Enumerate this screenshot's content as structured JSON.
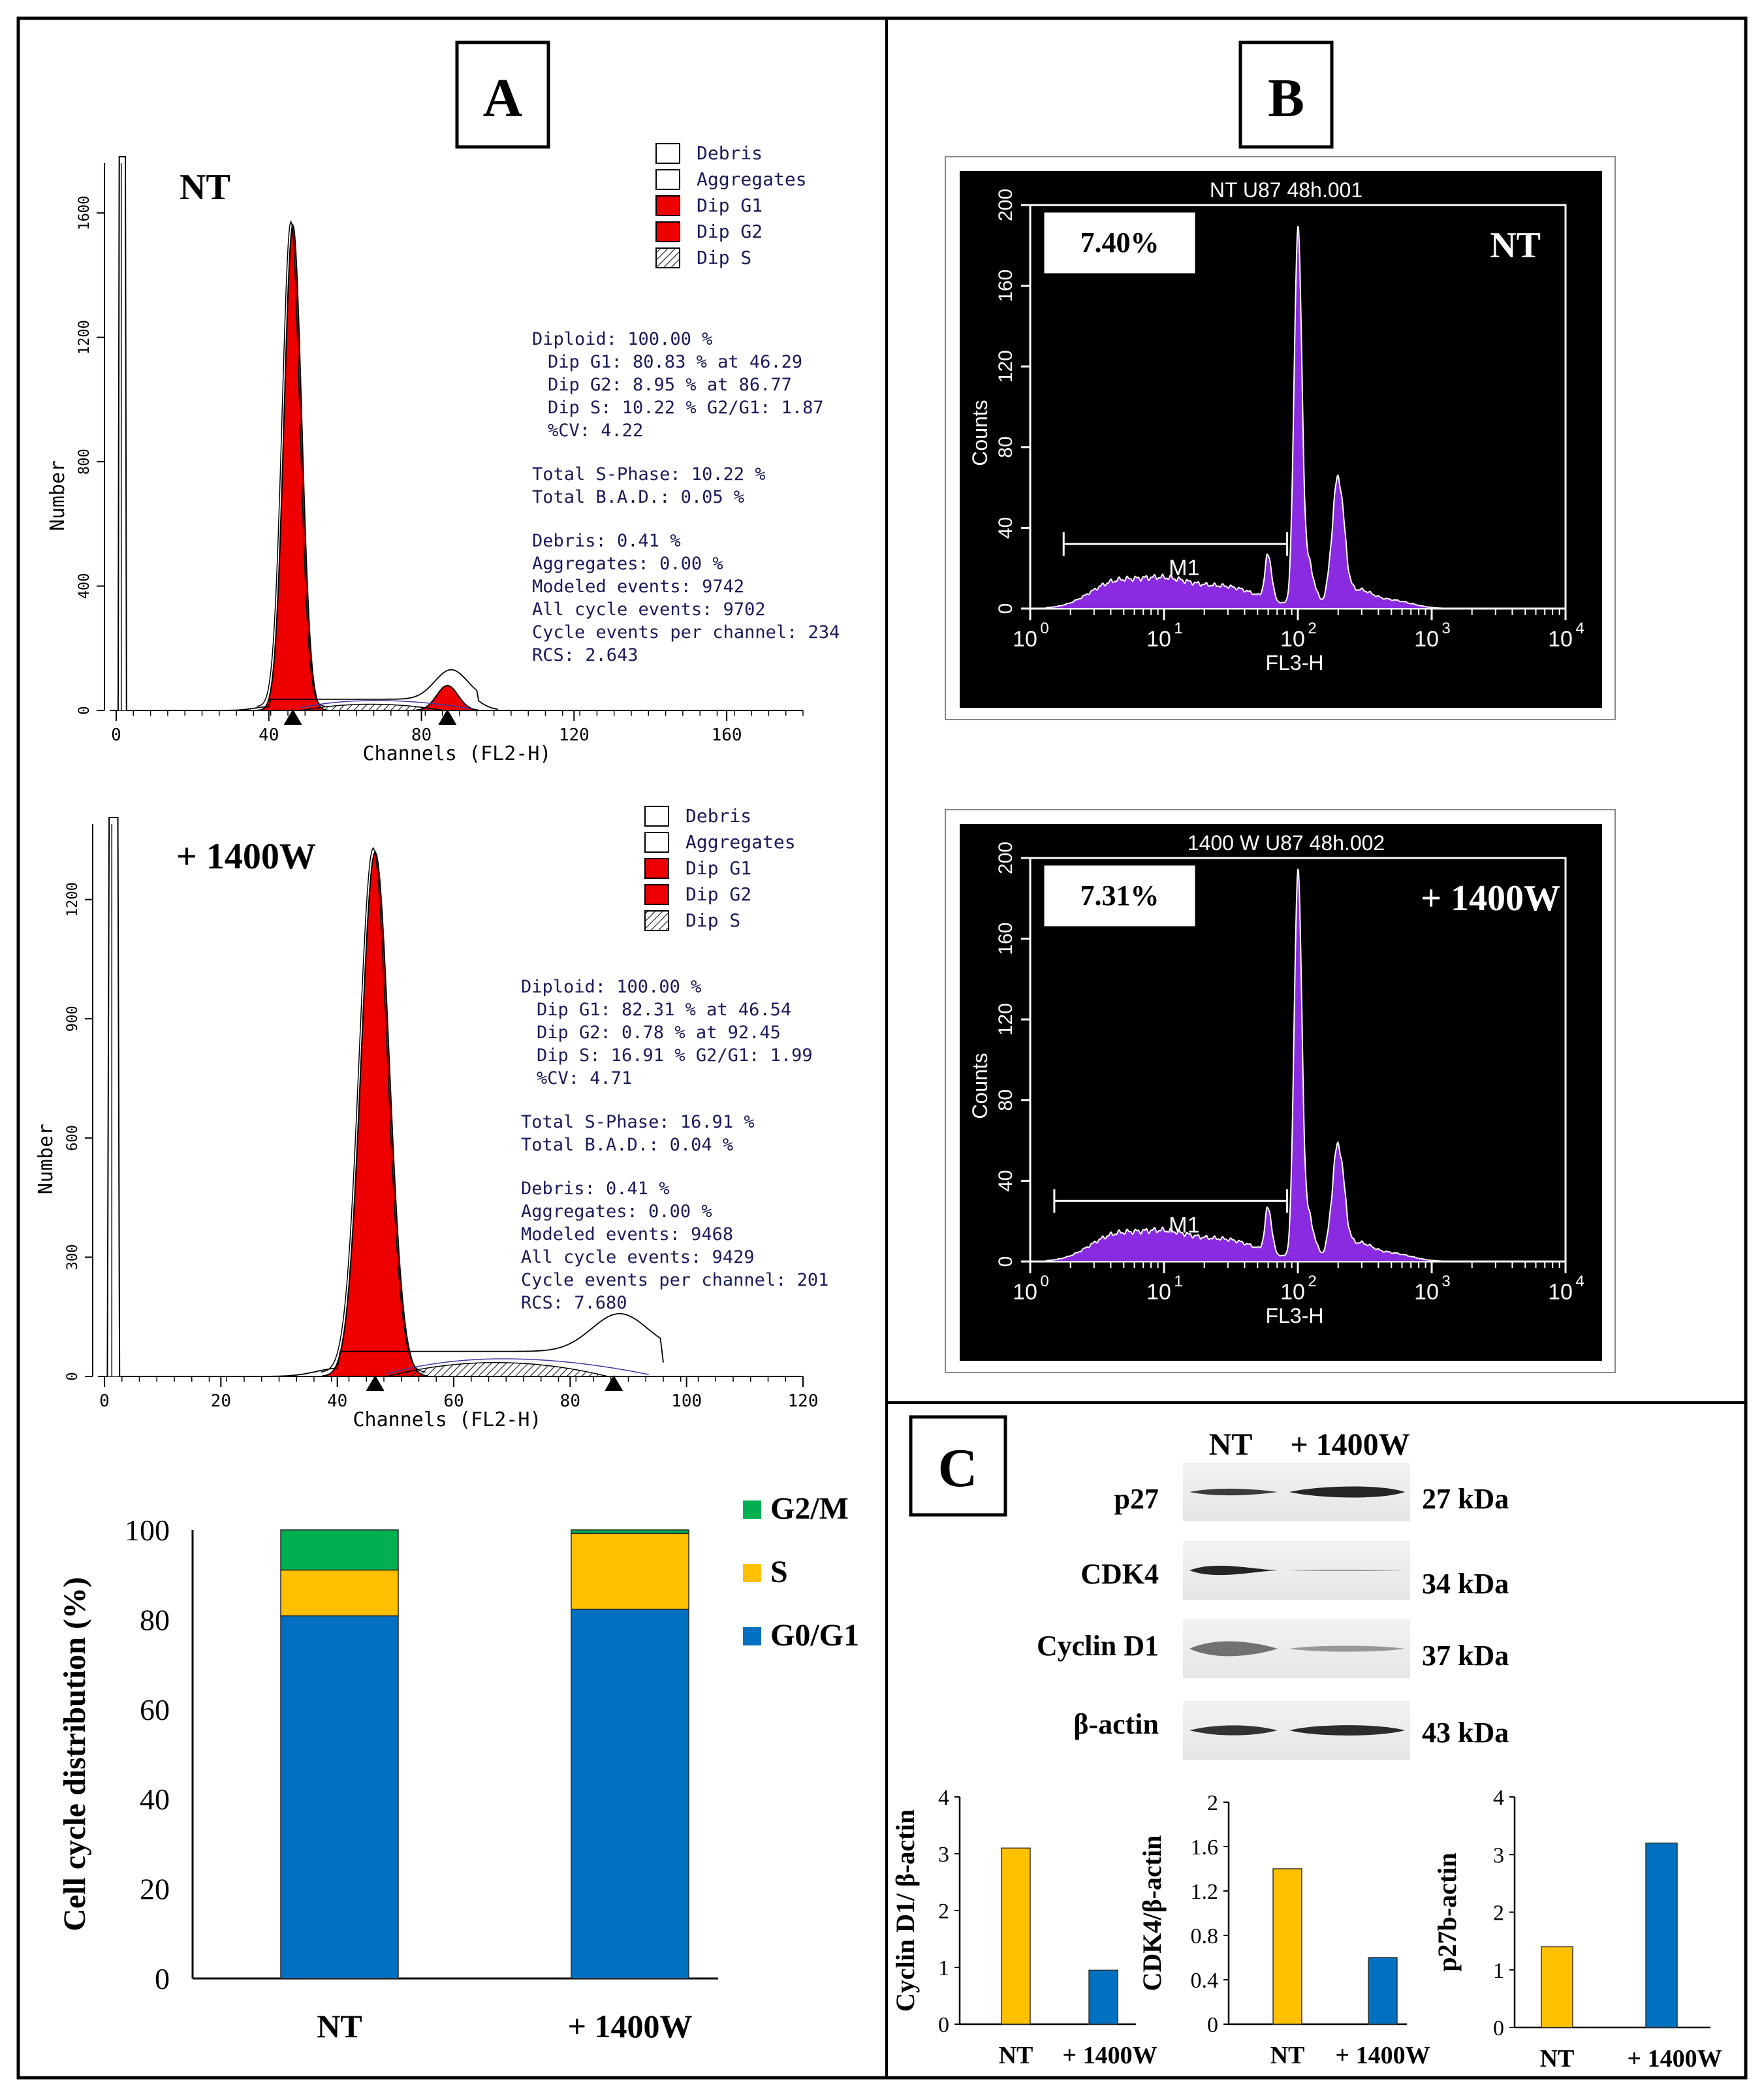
{
  "figure": {
    "panel_labels": [
      "A",
      "B",
      "C"
    ],
    "colors": {
      "g0g1": "#0070C0",
      "s": "#FFC000",
      "g2m": "#00B050",
      "red": "#EE0000",
      "purple": "#8A2BE2",
      "modfit_text": "#1A1A5A",
      "black": "#000000"
    }
  },
  "modfit_nt": {
    "sample_label": "NT",
    "y_axis_label": "Number",
    "x_axis_label": "Channels (FL2-H)",
    "y_ticks": [
      "0",
      "400",
      "800",
      "1200",
      "1600"
    ],
    "x_ticks": [
      "0",
      "40",
      "80",
      "120",
      "160"
    ],
    "legend": [
      "Debris",
      "Aggregates",
      "Dip G1",
      "Dip G2",
      "Dip S"
    ],
    "stats": [
      "Diploid: 100.00 %",
      "Dip G1: 80.83 % at 46.29",
      "Dip G2: 8.95 % at 86.77",
      "Dip S: 10.22 %   G2/G1: 1.87",
      "%CV: 4.22",
      "Total S-Phase: 10.22 %",
      "Total B.A.D.: 0.05 %",
      "Debris: 0.41 %",
      "Aggregates: 0.00 %",
      "Modeled events: 9742",
      "All cycle events: 9702",
      "Cycle events per channel: 234",
      "RCS: 2.643"
    ]
  },
  "modfit_1400w": {
    "sample_label": "+ 1400W",
    "y_axis_label": "Number",
    "x_axis_label": "Channels (FL2-H)",
    "y_ticks": [
      "0",
      "300",
      "600",
      "900",
      "1200"
    ],
    "x_ticks": [
      "0",
      "20",
      "40",
      "60",
      "80",
      "100",
      "120"
    ],
    "legend": [
      "Debris",
      "Aggregates",
      "Dip G1",
      "Dip G2",
      "Dip S"
    ],
    "stats": [
      "Diploid: 100.00 %",
      "Dip G1: 82.31 % at 46.54",
      "Dip G2: 0.78 % at 92.45",
      "Dip S: 16.91 %   G2/G1: 1.99",
      "%CV: 4.71",
      "Total S-Phase: 16.91 %",
      "Total B.A.D.: 0.04 %",
      "Debris: 0.41 %",
      "Aggregates: 0.00 %",
      "Modeled events: 9468",
      "All cycle events: 9429",
      "Cycle events per channel: 201",
      "RCS: 7.680"
    ]
  },
  "flow_nt": {
    "title": "NT U87 48h.001",
    "percent": "7.40%",
    "sample_label": "NT",
    "gate_label": "M1",
    "y_axis_label": "Counts",
    "x_axis_label": "FL3-H",
    "y_ticks": [
      "0",
      "40",
      "80",
      "120",
      "160",
      "200"
    ],
    "x_ticks_exp": [
      "0",
      "1",
      "2",
      "3",
      "4"
    ]
  },
  "flow_1400w": {
    "title": "1400 W U87 48h.002",
    "percent": "7.31%",
    "sample_label": "+ 1400W",
    "gate_label": "M1",
    "y_axis_label": "Counts",
    "x_axis_label": "FL3-H",
    "y_ticks": [
      "0",
      "40",
      "80",
      "120",
      "160",
      "200"
    ],
    "x_ticks_exp": [
      "0",
      "1",
      "2",
      "3",
      "4"
    ]
  },
  "western": {
    "lane_labels": [
      "NT",
      "+ 1400W"
    ],
    "proteins": [
      "p27",
      "CDK4",
      "Cyclin D1",
      "β-actin"
    ],
    "sizes": [
      "27 kDa",
      "34 kDa",
      "37 kDa",
      "43 kDa"
    ]
  },
  "chart_data": [
    {
      "type": "bar",
      "stacked": true,
      "title": "",
      "ylabel": "Cell cycle distribution (%)",
      "xlabel": "",
      "categories": [
        "NT",
        "+ 1400W"
      ],
      "ylim": [
        0,
        100
      ],
      "yticks": [
        "0",
        "20",
        "40",
        "60",
        "80",
        "100"
      ],
      "series": [
        {
          "name": "G0/G1",
          "values": [
            80.83,
            82.31
          ]
        },
        {
          "name": "S",
          "values": [
            10.22,
            16.91
          ]
        },
        {
          "name": "G2/M",
          "values": [
            8.95,
            0.78
          ]
        }
      ],
      "legend_order": [
        "G2/M",
        "S",
        "G0/G1"
      ]
    },
    {
      "type": "bar",
      "title": "",
      "ylabel": "Cyclin D1/ β-actin",
      "categories": [
        "NT",
        "+ 1400W"
      ],
      "values": [
        3.1,
        0.95
      ],
      "ylim": [
        0,
        4
      ],
      "yticks": [
        "0",
        "1",
        "2",
        "3",
        "4"
      ]
    },
    {
      "type": "bar",
      "title": "",
      "ylabel": "CDK4/β-actin",
      "categories": [
        "NT",
        "+ 1400W"
      ],
      "values": [
        1.4,
        0.6
      ],
      "ylim": [
        0,
        2
      ],
      "yticks": [
        "0",
        "0.4",
        "0.8",
        "1.2",
        "1.6",
        "2"
      ]
    },
    {
      "type": "bar",
      "title": "",
      "ylabel": "p27b-actin",
      "categories": [
        "NT",
        "+ 1400W"
      ],
      "values": [
        1.4,
        3.2
      ],
      "ylim": [
        0,
        4
      ],
      "yticks": [
        "0",
        "1",
        "2",
        "3",
        "4"
      ]
    }
  ]
}
